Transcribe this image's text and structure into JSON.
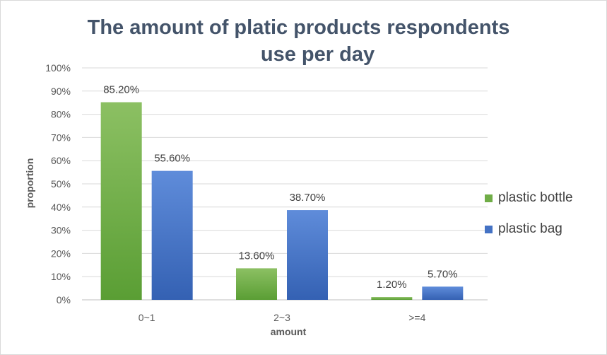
{
  "chart_data": {
    "type": "bar",
    "title_lines": [
      "The amount of platic products respondents",
      "use per day"
    ],
    "xlabel": "amount",
    "ylabel": "proportion",
    "categories": [
      "0~1",
      "2~3",
      ">=4"
    ],
    "ylim": [
      0,
      100
    ],
    "yticks": [
      "0%",
      "10%",
      "20%",
      "30%",
      "40%",
      "50%",
      "60%",
      "70%",
      "80%",
      "90%",
      "100%"
    ],
    "grid": true,
    "legend_position": "right",
    "series": [
      {
        "name": "plastic bottle",
        "values": [
          85.2,
          13.6,
          1.2
        ],
        "labels": [
          "85.20%",
          "13.60%",
          "1.20%"
        ],
        "color": "#70ad47",
        "color_light": "#8cc063",
        "color_dark": "#5a9e34"
      },
      {
        "name": "plastic bag",
        "values": [
          55.6,
          38.7,
          5.7
        ],
        "labels": [
          "55.60%",
          "38.70%",
          "5.70%"
        ],
        "color": "#4472c4",
        "color_light": "#5f8cda",
        "color_dark": "#3461b3"
      }
    ]
  }
}
